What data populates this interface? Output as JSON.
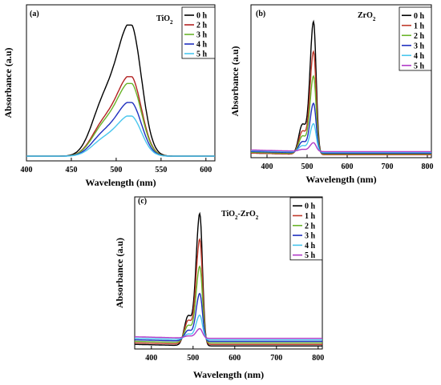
{
  "chart_data": [
    {
      "id": "a",
      "type": "line",
      "panel_label": "(a)",
      "sample": "TiO",
      "sample_sub": "2",
      "xlabel": "Wavelength (nm)",
      "ylabel": "Absorbance (a.u)",
      "xlim": [
        400,
        610
      ],
      "xticks": [
        400,
        450,
        500,
        550,
        600
      ],
      "ylim": [
        0,
        1
      ],
      "legend_position": "top-right",
      "baseline": 0.03,
      "peak_x": 516,
      "shoulder_x": 484,
      "series": [
        {
          "name": "0 h",
          "color": "#000000",
          "peak": 1.0
        },
        {
          "name": "2 h",
          "color": "#b22222",
          "peak": 0.62
        },
        {
          "name": "3 h",
          "color": "#6ab42a",
          "peak": 0.57
        },
        {
          "name": "4 h",
          "color": "#1f2fbf",
          "peak": 0.43
        },
        {
          "name": "5 h",
          "color": "#49c6ee",
          "peak": 0.33
        }
      ]
    },
    {
      "id": "b",
      "type": "line",
      "panel_label": "(b)",
      "sample": "ZrO",
      "sample_sub": "2",
      "xlabel": "Wavelength (nm)",
      "ylabel": "Absorbance (a.u)",
      "xlim": [
        360,
        810
      ],
      "xticks": [
        400,
        500,
        600,
        700,
        800
      ],
      "ylim": [
        0,
        1
      ],
      "legend_position": "top-right",
      "peak_x": 516,
      "shoulder_x": 488,
      "series": [
        {
          "name": "0 h",
          "color": "#000000",
          "peak": 1.0,
          "tail": 0.02
        },
        {
          "name": "1 h",
          "color": "#c0392b",
          "peak": 0.78,
          "tail": 0.02
        },
        {
          "name": "2 h",
          "color": "#6ab42a",
          "peak": 0.6,
          "tail": 0.025
        },
        {
          "name": "3 h",
          "color": "#1f2fbf",
          "peak": 0.4,
          "tail": 0.03
        },
        {
          "name": "4 h",
          "color": "#49c6ee",
          "peak": 0.25,
          "tail": 0.035
        },
        {
          "name": "5 h",
          "color": "#b03ac8",
          "peak": 0.11,
          "tail": 0.04
        }
      ]
    },
    {
      "id": "c",
      "type": "line",
      "panel_label": "(c)",
      "sample": "TiO",
      "sample_sub": "2",
      "sample_rest": "-ZrO",
      "sample_sub2": "2",
      "xlabel": "Wavelength (nm)",
      "ylabel": "Absorbance (a.u)",
      "xlim": [
        360,
        810
      ],
      "xticks": [
        400,
        500,
        600,
        700,
        800
      ],
      "ylim": [
        0,
        1
      ],
      "legend_position": "top-right",
      "peak_x": 516,
      "shoulder_x": 488,
      "series": [
        {
          "name": "0 h",
          "color": "#000000",
          "peak": 1.0,
          "tail": 0.02
        },
        {
          "name": "1 h",
          "color": "#c0392b",
          "peak": 0.81,
          "tail": 0.03
        },
        {
          "name": "2 h",
          "color": "#6ab42a",
          "peak": 0.61,
          "tail": 0.04
        },
        {
          "name": "3 h",
          "color": "#1f2fbf",
          "peak": 0.41,
          "tail": 0.05
        },
        {
          "name": "4 h",
          "color": "#49c6ee",
          "peak": 0.25,
          "tail": 0.06
        },
        {
          "name": "5 h",
          "color": "#b03ac8",
          "peak": 0.15,
          "tail": 0.07
        }
      ]
    }
  ]
}
